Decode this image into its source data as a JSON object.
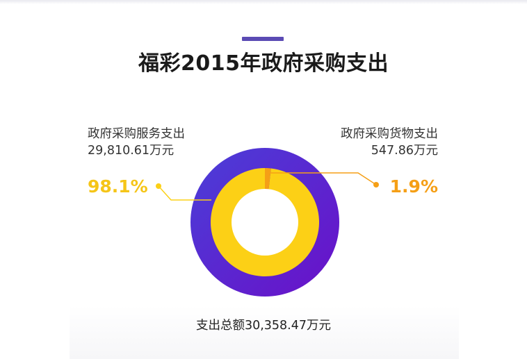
{
  "title": "福彩2015年政府采购支出",
  "colors": {
    "accent_bar": "#5b4bb4",
    "outer_ring_light": "#4a3fd8",
    "outer_ring_dark": "#6a10c8",
    "services": "#fcd016",
    "goods": "#f59f16"
  },
  "left": {
    "label": "政府采购服务支出",
    "value": "29,810.61万元",
    "percent": "98.1%"
  },
  "right": {
    "label": "政府采购货物支出",
    "value": "547.86万元",
    "percent": "1.9%"
  },
  "total": "支出总额30,358.47万元",
  "chart_data": {
    "type": "pie",
    "title": "福彩2015年政府采购支出",
    "categories": [
      "政府采购服务支出",
      "政府采购货物支出"
    ],
    "values": [
      29810.61,
      547.86
    ],
    "percent": [
      98.1,
      1.9
    ],
    "unit": "万元",
    "total": 30358.47
  }
}
